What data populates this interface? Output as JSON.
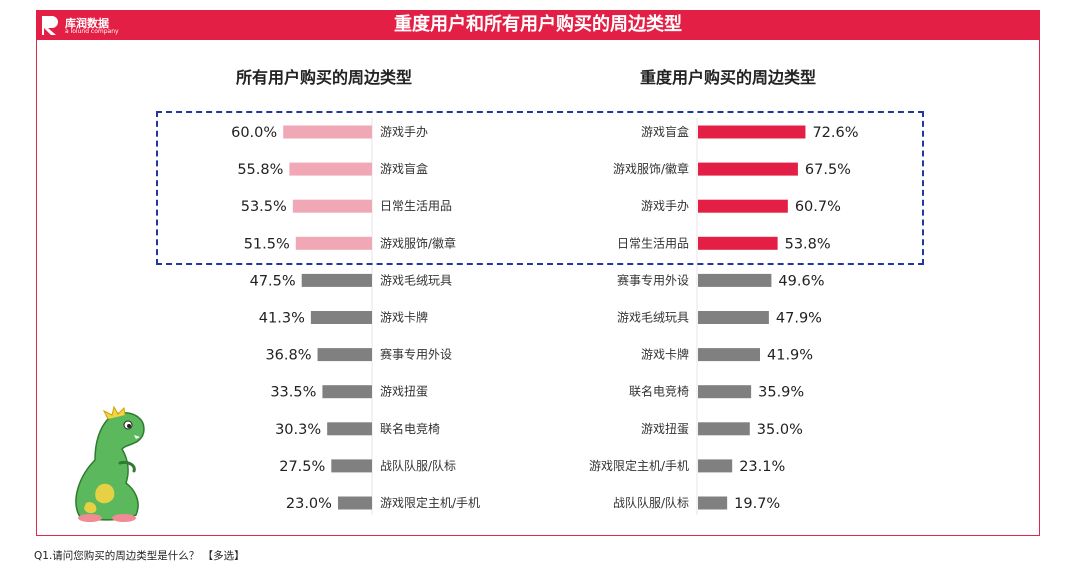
{
  "header": {
    "title": "重度用户和所有用户购买的周边类型",
    "logo_text": "库润数据",
    "logo_subtext": "a lolund company"
  },
  "footnote": "Q1.请问您购买的周边类型是什么？ 【多选】",
  "colors": {
    "brand": "#e41f45",
    "highlight_left": "#f0a8b6",
    "highlight_right": "#e41f45",
    "other": "#808080",
    "highlight_box": "#2237a0"
  },
  "chart_data": [
    {
      "type": "bar",
      "title": "所有用户购买的周边类型",
      "orientation": "horizontal",
      "direction": "right-to-left",
      "highlight_top_n": 4,
      "categories": [
        "游戏手办",
        "游戏盲盒",
        "日常生活用品",
        "游戏服饰/徽章",
        "游戏毛绒玩具",
        "游戏卡牌",
        "赛事专用外设",
        "游戏扭蛋",
        "联名电竞椅",
        "战队队服/队标",
        "游戏限定主机/手机"
      ],
      "values": [
        60.0,
        55.8,
        53.5,
        51.5,
        47.5,
        41.3,
        36.8,
        33.5,
        30.3,
        27.5,
        23.0
      ],
      "labels": [
        "60.0%",
        "55.8%",
        "53.5%",
        "51.5%",
        "47.5%",
        "41.3%",
        "36.8%",
        "33.5%",
        "30.3%",
        "27.5%",
        "23.0%"
      ]
    },
    {
      "type": "bar",
      "title": "重度用户购买的周边类型",
      "orientation": "horizontal",
      "direction": "left-to-right",
      "highlight_top_n": 4,
      "categories": [
        "游戏盲盒",
        "游戏服饰/徽章",
        "游戏手办",
        "日常生活用品",
        "赛事专用外设",
        "游戏毛绒玩具",
        "游戏卡牌",
        "联名电竞椅",
        "游戏扭蛋",
        "游戏限定主机/手机",
        "战队队服/队标"
      ],
      "values": [
        72.6,
        67.5,
        60.7,
        53.8,
        49.6,
        47.9,
        41.9,
        35.9,
        35.0,
        23.1,
        19.7
      ],
      "labels": [
        "72.6%",
        "67.5%",
        "60.7%",
        "53.8%",
        "49.6%",
        "47.9%",
        "41.9%",
        "35.9%",
        "35.0%",
        "23.1%",
        "19.7%"
      ]
    }
  ]
}
